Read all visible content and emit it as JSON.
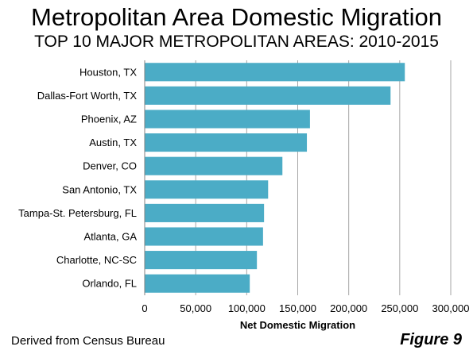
{
  "title": "Metropolitan Area Domestic Migration",
  "subtitle": "TOP 10 MAJOR METROPOLITAN AREAS: 2010-2015",
  "source": "Derived from Census Bureau",
  "figure_label": "Figure 9",
  "bar_color": "#4BACC6",
  "chart_data": {
    "type": "bar",
    "orientation": "horizontal",
    "categories": [
      "Houston, TX",
      "Dallas-Fort Worth, TX",
      "Phoenix, AZ",
      "Austin, TX",
      "Denver, CO",
      "San Antonio, TX",
      "Tampa-St. Petersburg, FL",
      "Atlanta, GA",
      "Charlotte, NC-SC",
      "Orlando, FL"
    ],
    "values": [
      255000,
      241000,
      162000,
      159000,
      135000,
      121000,
      117000,
      116000,
      110000,
      103000
    ],
    "xlabel": "Net Domestic Migration",
    "ylabel": "",
    "xlim": [
      0,
      300000
    ],
    "xticks": [
      0,
      50000,
      100000,
      150000,
      200000,
      250000,
      300000
    ],
    "xtick_labels": [
      "0",
      "50,000",
      "100,000",
      "150,000",
      "200,000",
      "250,000",
      "300,000"
    ],
    "grid": "vertical",
    "legend": "none"
  }
}
